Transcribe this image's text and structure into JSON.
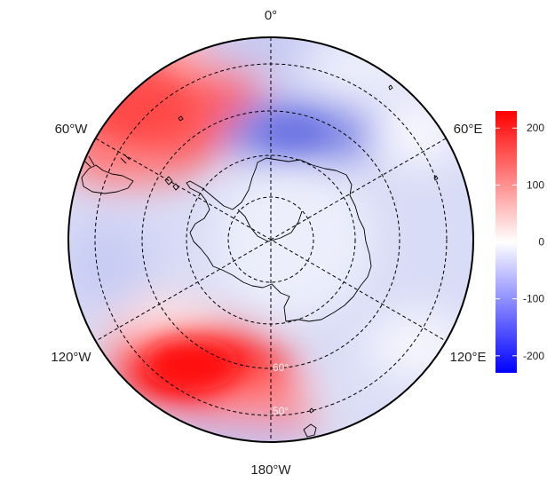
{
  "map": {
    "projection": "south-polar-stereographic",
    "longitude_labels": {
      "top": "0°",
      "upper_left": "60°W",
      "upper_right": "60°E",
      "lower_left": "120°W",
      "lower_right": "120°E",
      "bottom": "180°W"
    },
    "latitude_labels": [
      "60°",
      "50°"
    ],
    "field_colors": {
      "positive": "#ff0000",
      "neutral": "#ffffff",
      "negative": "#0000ff"
    }
  },
  "colorbar": {
    "min": -230,
    "max": 230,
    "ticks": [
      "200",
      "100",
      "0",
      "-100",
      "-200"
    ],
    "tick_values": [
      200,
      100,
      0,
      -100,
      -200
    ],
    "colors": [
      "#ff0000",
      "#ffffff",
      "#0000ff"
    ]
  }
}
